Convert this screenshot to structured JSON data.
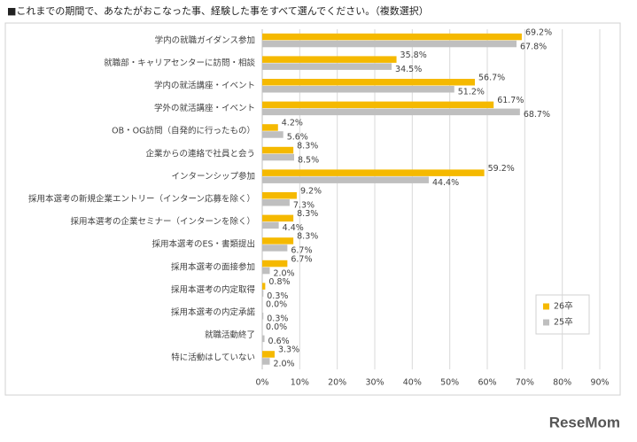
{
  "chart_data": {
    "type": "hbar",
    "title": "■これまでの期間で、あなたがおこなった事、経験した事をすべて選んでください。（複数選択）",
    "categories": [
      "学内の就職ガイダンス参加",
      "就職部・キャリアセンターに訪問・相談",
      "学内の就活講座・イベント",
      "学外の就活講座・イベント",
      "OB・OG訪問（自発的に行ったもの）",
      "企業からの連絡で社員と会う",
      "インターンシップ参加",
      "採用本選考の新規企業エントリー（インターン応募を除く）",
      "採用本選考の企業セミナー（インターンを除く）",
      "採用本選考のES・書類提出",
      "採用本選考の面接参加",
      "採用本選考の内定取得",
      "採用本選考の内定承諾",
      "就職活動終了",
      "特に活動はしていない"
    ],
    "series": [
      {
        "name": "26卒",
        "color": "#F5B900",
        "values": [
          69.2,
          35.8,
          56.7,
          61.7,
          4.2,
          8.3,
          59.2,
          9.2,
          8.3,
          8.3,
          6.7,
          0.8,
          0.0,
          0.0,
          3.3
        ],
        "value_labels": [
          "69.2%",
          "35.8%",
          "56.7%",
          "61.7%",
          "4.2%",
          "8.3%",
          "59.2%",
          "9.2%",
          "8.3%",
          "8.3%",
          "6.7%",
          "0.8%",
          "0.0%",
          "0.0%",
          "3.3%"
        ]
      },
      {
        "name": "25卒",
        "color": "#BFBFBF",
        "values": [
          67.8,
          34.5,
          51.2,
          68.7,
          5.6,
          8.5,
          44.4,
          7.3,
          4.4,
          6.7,
          2.0,
          0.3,
          0.3,
          0.6,
          2.0
        ],
        "value_labels": [
          "67.8%",
          "34.5%",
          "51.2%",
          "68.7%",
          "5.6%",
          "8.5%",
          "44.4%",
          "7.3%",
          "4.4%",
          "6.7%",
          "2.0%",
          "0.3%",
          "0.3%",
          "0.6%",
          "2.0%"
        ]
      }
    ],
    "xlim": [
      0,
      90
    ],
    "xticks": [
      {
        "value": 0,
        "label": "0%"
      },
      {
        "value": 10,
        "label": "10%"
      },
      {
        "value": 20,
        "label": "20%"
      },
      {
        "value": 30,
        "label": "30%"
      },
      {
        "value": 40,
        "label": "40%"
      },
      {
        "value": 50,
        "label": "50%"
      },
      {
        "value": 60,
        "label": "60%"
      },
      {
        "value": 70,
        "label": "70%"
      },
      {
        "value": 80,
        "label": "80%"
      },
      {
        "value": 90,
        "label": "90%"
      }
    ],
    "grid": true,
    "logo": "ReseMom"
  }
}
